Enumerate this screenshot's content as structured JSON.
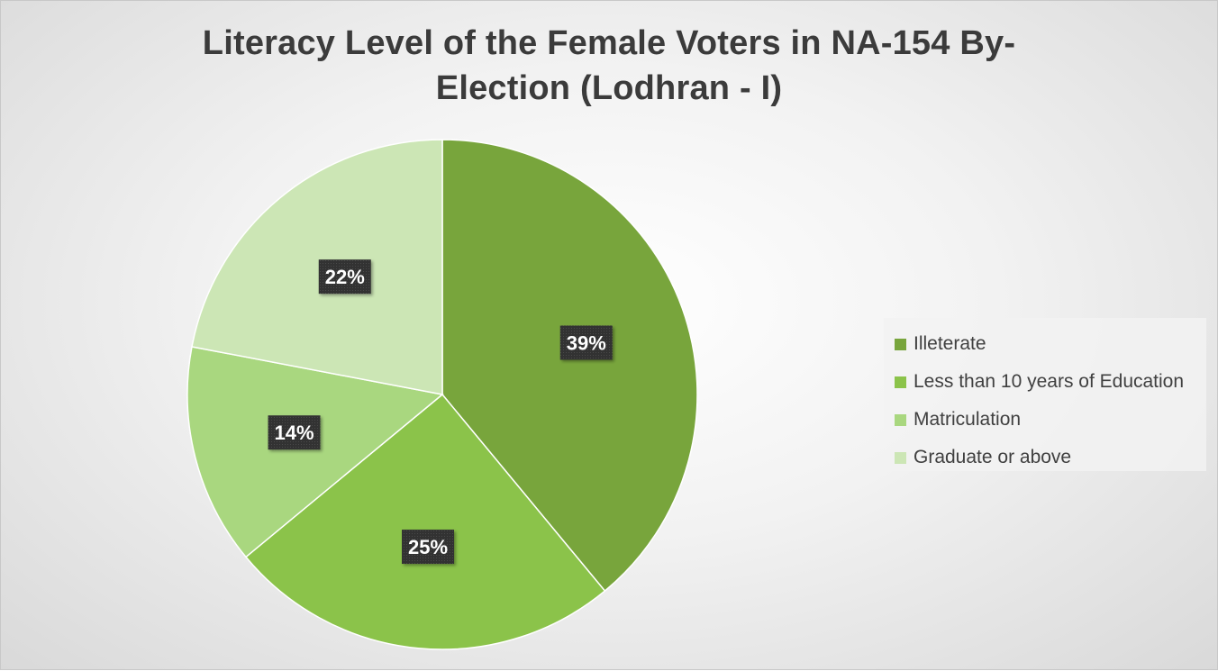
{
  "chart_data": {
    "type": "pie",
    "title": "Literacy Level of the Female Voters in NA-154 By-Election (Lodhran - I)",
    "title_lines": [
      "Literacy Level of the Female Voters in NA-154 By-",
      "Election (Lodhran - I)"
    ],
    "categories": [
      "Illeterate",
      "Less than 10 years of Education",
      "Matriculation",
      "Graduate or above"
    ],
    "values": [
      39,
      25,
      14,
      22
    ],
    "data_labels": [
      "39%",
      "25%",
      "14%",
      "22%"
    ],
    "colors": [
      "#78A53C",
      "#8BC34A",
      "#A9D77F",
      "#CCE6B5"
    ],
    "legend_position": "right"
  }
}
